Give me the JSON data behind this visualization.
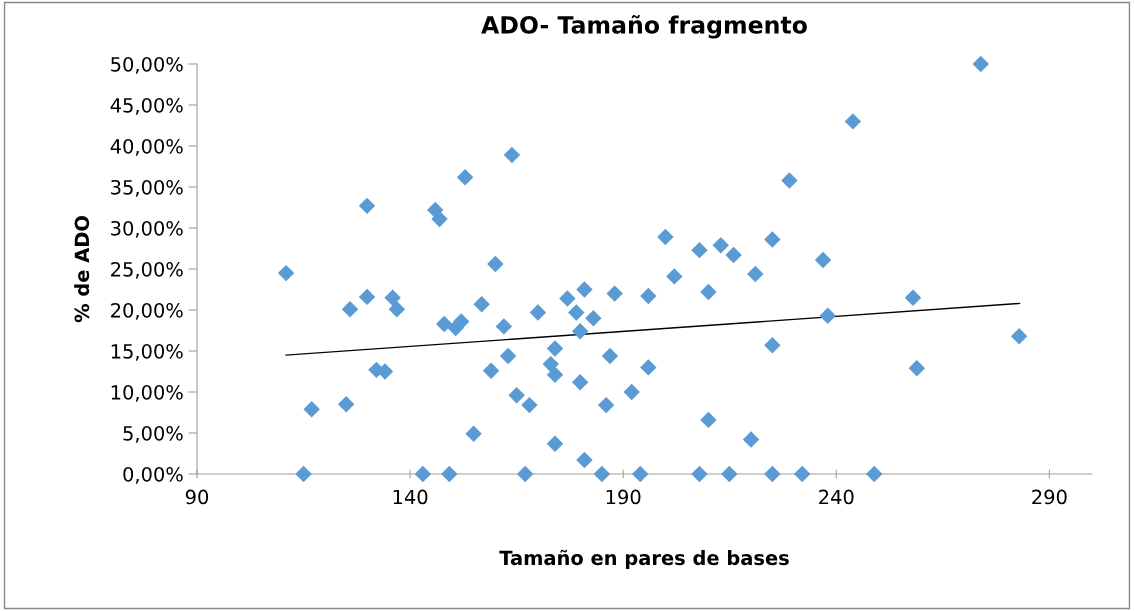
{
  "chart_data": {
    "type": "scatter",
    "title": "ADO- Tamaño fragmento",
    "xlabel": "Tamaño en pares de bases",
    "ylabel": "% de ADO",
    "xlim": [
      90,
      300
    ],
    "xticks": [
      90,
      140,
      190,
      240,
      290
    ],
    "ylim": [
      0,
      50
    ],
    "yticks": [
      {
        "value": 0,
        "label": "0,00%"
      },
      {
        "value": 5,
        "label": "5,00%"
      },
      {
        "value": 10,
        "label": "10,00%"
      },
      {
        "value": 15,
        "label": "15,00%"
      },
      {
        "value": 20,
        "label": "20,00%"
      },
      {
        "value": 25,
        "label": "25,00%"
      },
      {
        "value": 30,
        "label": "30,00%"
      },
      {
        "value": 35,
        "label": "35,00%"
      },
      {
        "value": 40,
        "label": "40,00%"
      },
      {
        "value": 45,
        "label": "45,00%"
      },
      {
        "value": 50,
        "label": "50,00%"
      }
    ],
    "grid": false,
    "legend": false,
    "marker": "diamond",
    "series": [
      {
        "color": "#5b9bd5",
        "x": [
          110.9,
          116.9,
          115,
          125,
          125.9,
          129.9,
          129.9,
          132.1,
          134.1,
          135.9,
          136.9,
          143,
          145.9,
          146.9,
          148,
          149.2,
          150.7,
          152,
          152.9,
          154.9,
          156.8,
          159,
          160,
          163.9,
          162,
          163,
          165,
          167,
          168,
          170,
          174,
          173,
          174,
          174,
          176.9,
          179,
          179.9,
          180.9,
          183,
          179.9,
          180.9,
          185,
          186,
          186.9,
          188,
          192,
          194,
          195.9,
          195.9,
          199.9,
          202,
          207.9,
          207.9,
          210,
          210,
          212.9,
          214.9,
          215.9,
          220,
          221,
          225,
          225,
          225,
          229,
          232,
          243.9,
          236.9,
          238,
          248.9,
          258,
          258.9,
          273.9,
          282.9
        ],
        "values": [
          24.5,
          7.9,
          0,
          8.5,
          20.1,
          32.7,
          21.6,
          12.7,
          12.5,
          21.5,
          20.1,
          0,
          32.2,
          31.1,
          18.3,
          0,
          17.8,
          18.6,
          36.2,
          4.9,
          20.7,
          12.6,
          25.6,
          38.9,
          18.0,
          14.4,
          9.6,
          0,
          8.4,
          19.7,
          15.3,
          13.4,
          12.1,
          3.7,
          21.4,
          19.7,
          17.4,
          22.5,
          19.0,
          11.2,
          1.7,
          0,
          8.4,
          14.4,
          22.0,
          10.0,
          0,
          21.7,
          13.0,
          28.9,
          24.1,
          27.3,
          0,
          22.2,
          6.6,
          27.9,
          0,
          26.7,
          4.2,
          24.4,
          28.6,
          15.7,
          0,
          35.8,
          0,
          43.0,
          26.1,
          19.3,
          0,
          21.5,
          12.9,
          50.0,
          16.8
        ]
      },
      {
        "type": "line",
        "color": "#000000",
        "marker": "none",
        "x": [
          110.9,
          283
        ],
        "values": [
          14.5,
          20.8
        ]
      }
    ]
  }
}
